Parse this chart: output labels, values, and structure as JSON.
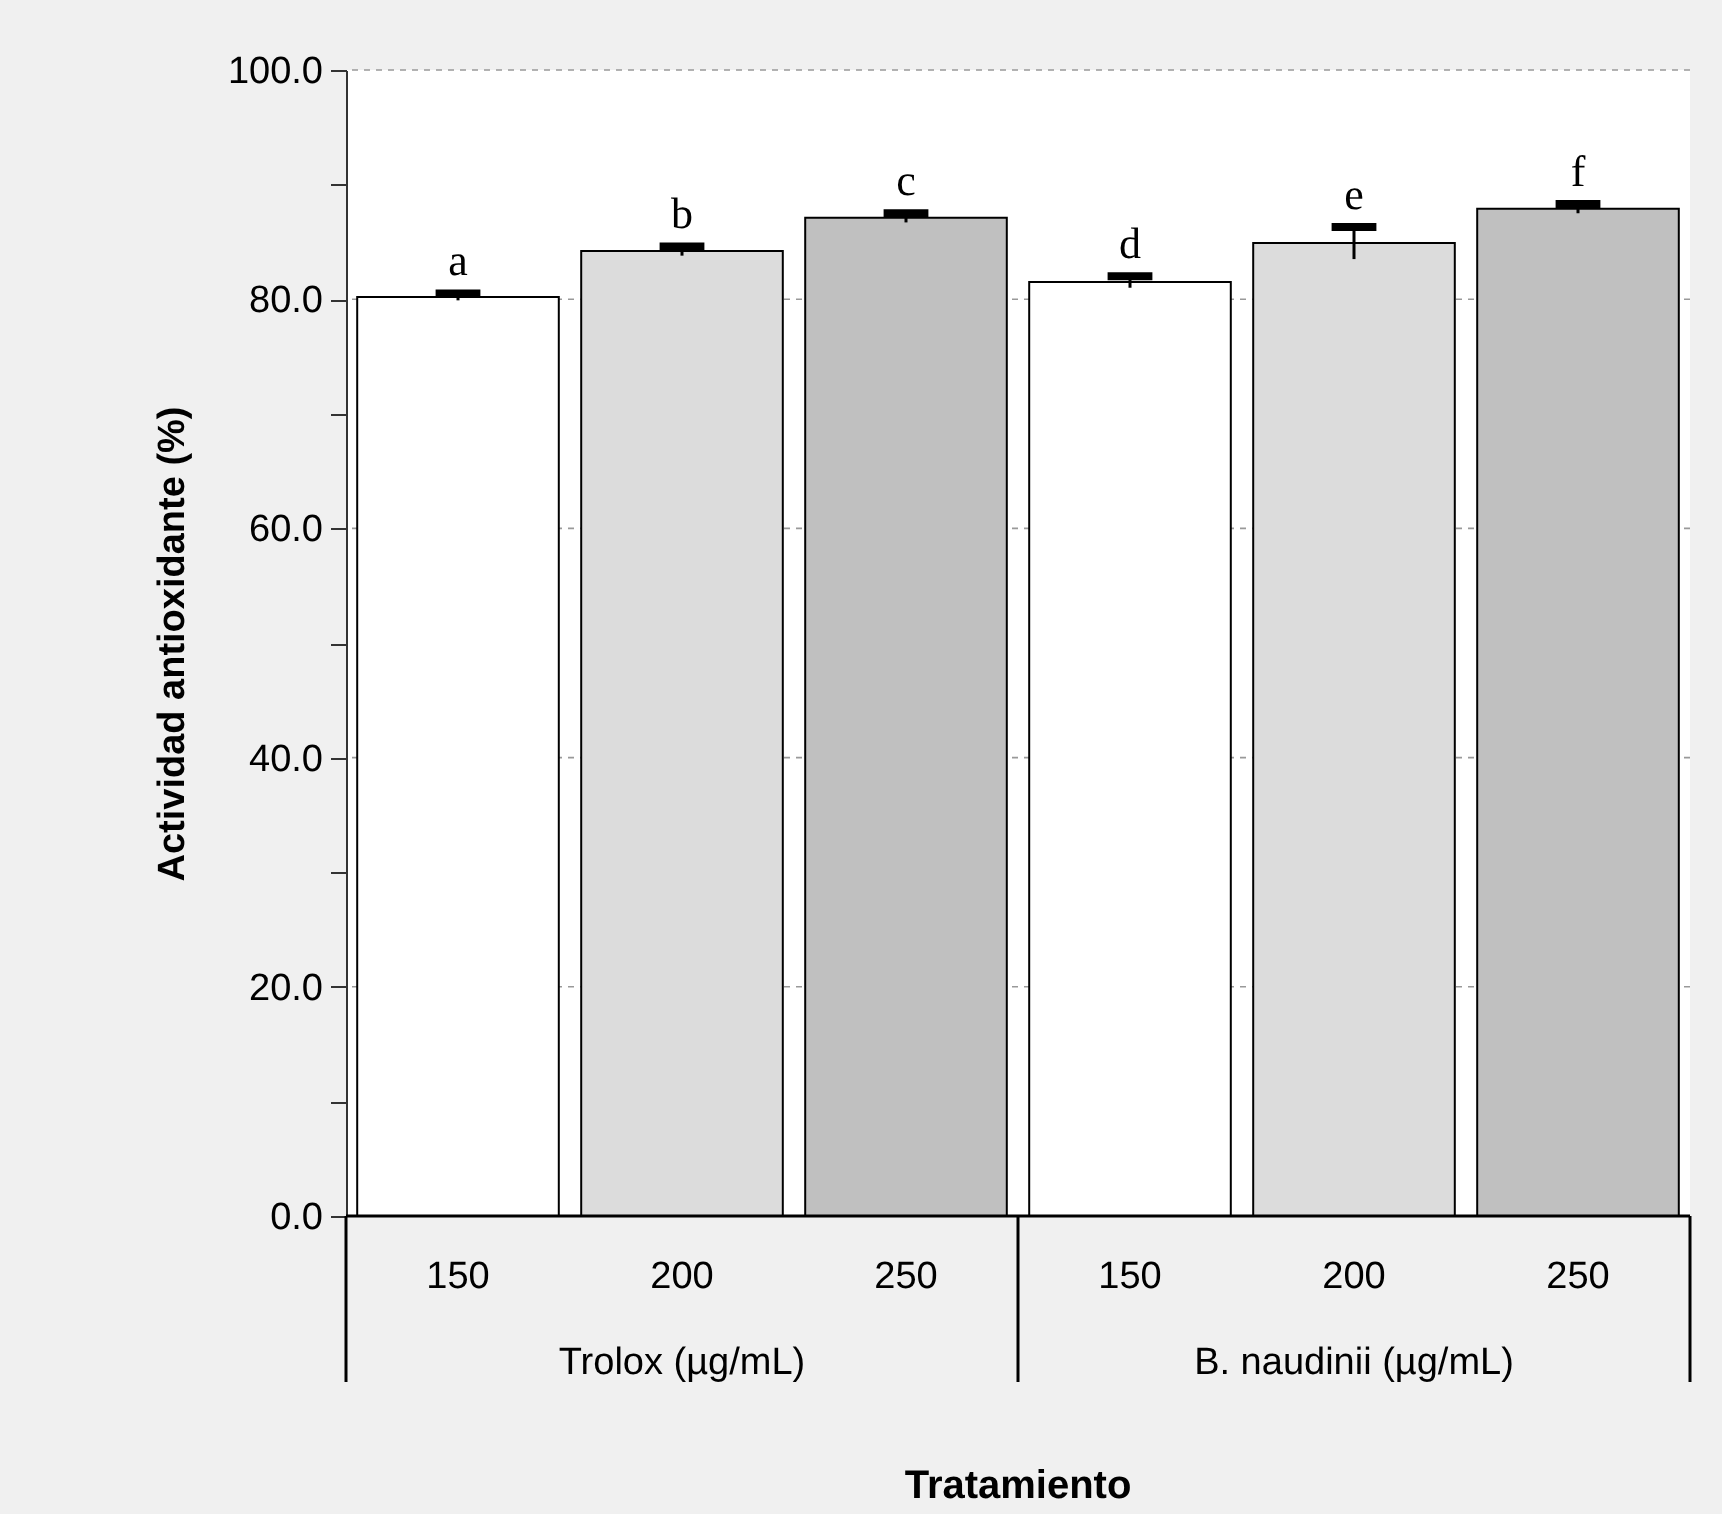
{
  "chart_data": {
    "type": "bar",
    "categories": [
      "150",
      "200",
      "250",
      "150",
      "200",
      "250"
    ],
    "values": [
      80.2,
      84.2,
      87.1,
      81.5,
      84.9,
      87.9
    ],
    "errors": [
      0.3,
      0.4,
      0.4,
      0.5,
      1.4,
      0.4
    ],
    "value_labels": [
      "a",
      "b",
      "c",
      "d",
      "e",
      "f"
    ],
    "colors": [
      "#ffffff",
      "#dcdcdc",
      "#c0c0c0",
      "#ffffff",
      "#dcdcdc",
      "#c0c0c0"
    ],
    "xlabel": "Tratamiento",
    "ylabel": "Actividad antioxidante (%)",
    "ylim": [
      0,
      100
    ],
    "yticks": [
      {
        "value": 0,
        "label": "0.0"
      },
      {
        "value": 10,
        "label": null
      },
      {
        "value": 20,
        "label": "20.0"
      },
      {
        "value": 30,
        "label": null
      },
      {
        "value": 40,
        "label": "40.0"
      },
      {
        "value": 50,
        "label": null
      },
      {
        "value": 60,
        "label": "60.0"
      },
      {
        "value": 70,
        "label": null
      },
      {
        "value": 80,
        "label": "80.0"
      },
      {
        "value": 90,
        "label": null
      },
      {
        "value": 100,
        "label": "100.0"
      }
    ],
    "grid": "y",
    "annotations": [
      "Trolox (µg/mL)",
      "B. naudinii (µg/mL)"
    ]
  }
}
